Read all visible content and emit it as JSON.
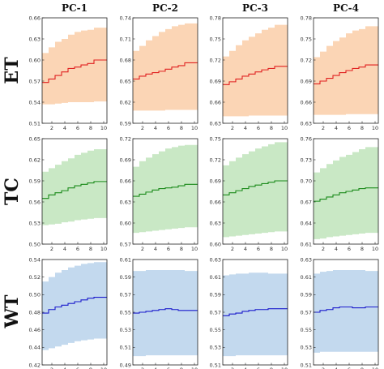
{
  "column_titles": [
    "PC-1",
    "PC-2",
    "PC-3",
    "PC-4"
  ],
  "row_titles": [
    "ET",
    "TC",
    "WT"
  ],
  "colors": {
    "ET": {
      "band": "#fbd5b5",
      "line": "#e02020"
    },
    "TC": {
      "band": "#c9e8c5",
      "line": "#1a8a1a"
    },
    "WT": {
      "band": "#c3d9ee",
      "line": "#1a1acc"
    }
  },
  "chart_data": [
    {
      "type": "line",
      "row": "ET",
      "column": "PC-1",
      "x": [
        1,
        2,
        3,
        4,
        5,
        6,
        7,
        8,
        9,
        10
      ],
      "median": [
        0.568,
        0.573,
        0.578,
        0.583,
        0.588,
        0.59,
        0.593,
        0.595,
        0.6,
        0.6
      ],
      "lower": [
        0.537,
        0.537,
        0.538,
        0.539,
        0.54,
        0.54,
        0.54,
        0.54,
        0.541,
        0.541
      ],
      "upper": [
        0.61,
        0.618,
        0.626,
        0.63,
        0.636,
        0.64,
        0.642,
        0.643,
        0.646,
        0.646
      ],
      "xticks": [
        "2",
        "4",
        "6",
        "8",
        "10"
      ],
      "ylim": [
        0.51,
        0.66
      ],
      "yticks": [
        "0.51",
        "0.54",
        "0.57",
        "0.60",
        "0.63",
        "0.66"
      ]
    },
    {
      "type": "line",
      "row": "ET",
      "column": "PC-2",
      "x": [
        1,
        2,
        3,
        4,
        5,
        6,
        7,
        8,
        9,
        10
      ],
      "median": [
        0.653,
        0.657,
        0.66,
        0.662,
        0.664,
        0.667,
        0.67,
        0.672,
        0.676,
        0.676
      ],
      "lower": [
        0.608,
        0.608,
        0.608,
        0.608,
        0.608,
        0.609,
        0.609,
        0.609,
        0.609,
        0.609
      ],
      "upper": [
        0.693,
        0.7,
        0.708,
        0.714,
        0.72,
        0.724,
        0.728,
        0.73,
        0.732,
        0.732
      ],
      "xticks": [
        "2",
        "4",
        "6",
        "8",
        "10"
      ],
      "ylim": [
        0.59,
        0.74
      ],
      "yticks": [
        "0.59",
        "0.62",
        "0.65",
        "0.68",
        "0.71",
        "0.74"
      ]
    },
    {
      "type": "line",
      "row": "ET",
      "column": "PC-3",
      "x": [
        1,
        2,
        3,
        4,
        5,
        6,
        7,
        8,
        9,
        10
      ],
      "median": [
        0.685,
        0.689,
        0.693,
        0.697,
        0.7,
        0.703,
        0.706,
        0.708,
        0.711,
        0.711
      ],
      "lower": [
        0.64,
        0.64,
        0.64,
        0.64,
        0.641,
        0.641,
        0.641,
        0.641,
        0.641,
        0.641
      ],
      "upper": [
        0.725,
        0.733,
        0.741,
        0.748,
        0.753,
        0.758,
        0.763,
        0.766,
        0.77,
        0.77
      ],
      "xticks": [
        "2",
        "4",
        "6",
        "8",
        "10"
      ],
      "ylim": [
        0.63,
        0.78
      ],
      "yticks": [
        "0.63",
        "0.66",
        "0.69",
        "0.72",
        "0.75",
        "0.78"
      ]
    },
    {
      "type": "line",
      "row": "ET",
      "column": "PC-4",
      "x": [
        1,
        2,
        3,
        4,
        5,
        6,
        7,
        8,
        9,
        10
      ],
      "median": [
        0.686,
        0.69,
        0.694,
        0.698,
        0.702,
        0.705,
        0.708,
        0.71,
        0.713,
        0.713
      ],
      "lower": [
        0.642,
        0.642,
        0.642,
        0.642,
        0.642,
        0.643,
        0.643,
        0.643,
        0.643,
        0.643
      ],
      "upper": [
        0.724,
        0.732,
        0.74,
        0.747,
        0.752,
        0.758,
        0.762,
        0.764,
        0.768,
        0.768
      ],
      "xticks": [
        "2",
        "4",
        "6",
        "8",
        "10"
      ],
      "ylim": [
        0.63,
        0.78
      ],
      "yticks": [
        "0.63",
        "0.66",
        "0.69",
        "0.72",
        "0.75",
        "0.78"
      ]
    },
    {
      "type": "line",
      "row": "TC",
      "column": "PC-1",
      "x": [
        1,
        2,
        3,
        4,
        5,
        6,
        7,
        8,
        9,
        10
      ],
      "median": [
        0.565,
        0.57,
        0.573,
        0.576,
        0.58,
        0.583,
        0.585,
        0.587,
        0.589,
        0.589
      ],
      "lower": [
        0.527,
        0.528,
        0.529,
        0.531,
        0.532,
        0.534,
        0.535,
        0.536,
        0.537,
        0.537
      ],
      "upper": [
        0.603,
        0.608,
        0.613,
        0.618,
        0.622,
        0.627,
        0.63,
        0.633,
        0.635,
        0.635
      ],
      "xticks": [
        "2",
        "4",
        "6",
        "8",
        "10"
      ],
      "ylim": [
        0.5,
        0.65
      ],
      "yticks": [
        "0.50",
        "0.53",
        "0.56",
        "0.59",
        "0.62",
        "0.65"
      ]
    },
    {
      "type": "line",
      "row": "TC",
      "column": "PC-2",
      "x": [
        1,
        2,
        3,
        4,
        5,
        6,
        7,
        8,
        9,
        10
      ],
      "median": [
        0.638,
        0.641,
        0.644,
        0.647,
        0.649,
        0.65,
        0.651,
        0.653,
        0.655,
        0.655
      ],
      "lower": [
        0.586,
        0.587,
        0.588,
        0.589,
        0.59,
        0.591,
        0.592,
        0.593,
        0.594,
        0.594
      ],
      "upper": [
        0.68,
        0.688,
        0.693,
        0.698,
        0.702,
        0.706,
        0.708,
        0.71,
        0.711,
        0.711
      ],
      "xticks": [
        "2",
        "4",
        "6",
        "8",
        "10"
      ],
      "ylim": [
        0.57,
        0.72
      ],
      "yticks": [
        "0.57",
        "0.60",
        "0.63",
        "0.66",
        "0.69",
        "0.72"
      ]
    },
    {
      "type": "line",
      "row": "TC",
      "column": "PC-3",
      "x": [
        1,
        2,
        3,
        4,
        5,
        6,
        7,
        8,
        9,
        10
      ],
      "median": [
        0.67,
        0.673,
        0.676,
        0.679,
        0.682,
        0.684,
        0.686,
        0.688,
        0.69,
        0.69
      ],
      "lower": [
        0.61,
        0.611,
        0.612,
        0.613,
        0.614,
        0.615,
        0.616,
        0.617,
        0.618,
        0.618
      ],
      "upper": [
        0.712,
        0.718,
        0.723,
        0.728,
        0.732,
        0.736,
        0.739,
        0.742,
        0.745,
        0.745
      ],
      "xticks": [
        "2",
        "4",
        "6",
        "8",
        "10"
      ],
      "ylim": [
        0.6,
        0.75
      ],
      "yticks": [
        "0.60",
        "0.63",
        "0.66",
        "0.69",
        "0.72",
        "0.75"
      ]
    },
    {
      "type": "line",
      "row": "TC",
      "column": "PC-4",
      "x": [
        1,
        2,
        3,
        4,
        5,
        6,
        7,
        8,
        9,
        10
      ],
      "median": [
        0.671,
        0.674,
        0.677,
        0.68,
        0.683,
        0.685,
        0.687,
        0.689,
        0.69,
        0.69
      ],
      "lower": [
        0.617,
        0.618,
        0.62,
        0.621,
        0.622,
        0.623,
        0.624,
        0.625,
        0.626,
        0.626
      ],
      "upper": [
        0.712,
        0.718,
        0.724,
        0.729,
        0.734,
        0.737,
        0.741,
        0.745,
        0.748,
        0.748
      ],
      "xticks": [
        "2",
        "4",
        "6",
        "8",
        "10"
      ],
      "ylim": [
        0.61,
        0.76
      ],
      "yticks": [
        "0.61",
        "0.64",
        "0.67",
        "0.70",
        "0.73",
        "0.76"
      ]
    },
    {
      "type": "line",
      "row": "WT",
      "column": "PC-1",
      "x": [
        1,
        2,
        3,
        4,
        5,
        6,
        7,
        8,
        9,
        10
      ],
      "median": [
        0.479,
        0.483,
        0.486,
        0.488,
        0.49,
        0.492,
        0.494,
        0.496,
        0.497,
        0.497
      ],
      "lower": [
        0.437,
        0.439,
        0.441,
        0.443,
        0.445,
        0.447,
        0.448,
        0.449,
        0.45,
        0.45
      ],
      "upper": [
        0.515,
        0.52,
        0.525,
        0.528,
        0.531,
        0.533,
        0.535,
        0.536,
        0.537,
        0.537
      ],
      "xticks": [
        "2",
        "4",
        "6",
        "8",
        "10"
      ],
      "ylim": [
        0.42,
        0.54
      ],
      "yticks": [
        "0.42",
        "0.44",
        "0.46",
        "0.48",
        "0.50",
        "0.52",
        "0.54"
      ]
    },
    {
      "type": "line",
      "row": "WT",
      "column": "PC-2",
      "x": [
        1,
        2,
        3,
        4,
        5,
        6,
        7,
        8,
        9,
        10
      ],
      "median": [
        0.549,
        0.55,
        0.551,
        0.552,
        0.553,
        0.554,
        0.553,
        0.552,
        0.552,
        0.552
      ],
      "lower": [
        0.5,
        0.5,
        0.501,
        0.501,
        0.501,
        0.501,
        0.501,
        0.501,
        0.501,
        0.501
      ],
      "upper": [
        0.597,
        0.597,
        0.598,
        0.598,
        0.598,
        0.598,
        0.598,
        0.598,
        0.597,
        0.597
      ],
      "xticks": [
        "2",
        "4",
        "6",
        "8",
        "10"
      ],
      "ylim": [
        0.49,
        0.61
      ],
      "yticks": [
        "0.49",
        "0.51",
        "0.53",
        "0.55",
        "0.57",
        "0.59",
        "0.61"
      ]
    },
    {
      "type": "line",
      "row": "WT",
      "column": "PC-3",
      "x": [
        1,
        2,
        3,
        4,
        5,
        6,
        7,
        8,
        9,
        10
      ],
      "median": [
        0.566,
        0.568,
        0.569,
        0.571,
        0.572,
        0.573,
        0.573,
        0.574,
        0.574,
        0.574
      ],
      "lower": [
        0.52,
        0.52,
        0.521,
        0.521,
        0.521,
        0.521,
        0.521,
        0.521,
        0.521,
        0.521
      ],
      "upper": [
        0.612,
        0.613,
        0.614,
        0.614,
        0.615,
        0.615,
        0.615,
        0.614,
        0.614,
        0.614
      ],
      "xticks": [
        "2",
        "4",
        "6",
        "8",
        "10"
      ],
      "ylim": [
        0.51,
        0.63
      ],
      "yticks": [
        "0.51",
        "0.53",
        "0.55",
        "0.57",
        "0.59",
        "0.61",
        "0.63"
      ]
    },
    {
      "type": "line",
      "row": "WT",
      "column": "PC-4",
      "x": [
        1,
        2,
        3,
        4,
        5,
        6,
        7,
        8,
        9,
        10
      ],
      "median": [
        0.57,
        0.572,
        0.573,
        0.575,
        0.576,
        0.576,
        0.575,
        0.575,
        0.576,
        0.576
      ],
      "lower": [
        0.524,
        0.525,
        0.525,
        0.525,
        0.525,
        0.525,
        0.525,
        0.525,
        0.525,
        0.525
      ],
      "upper": [
        0.614,
        0.616,
        0.617,
        0.618,
        0.618,
        0.618,
        0.618,
        0.618,
        0.617,
        0.617
      ],
      "xticks": [
        "2",
        "4",
        "6",
        "8",
        "10"
      ],
      "ylim": [
        0.51,
        0.63
      ],
      "yticks": [
        "0.51",
        "0.53",
        "0.55",
        "0.57",
        "0.59",
        "0.61",
        "0.63"
      ]
    }
  ]
}
